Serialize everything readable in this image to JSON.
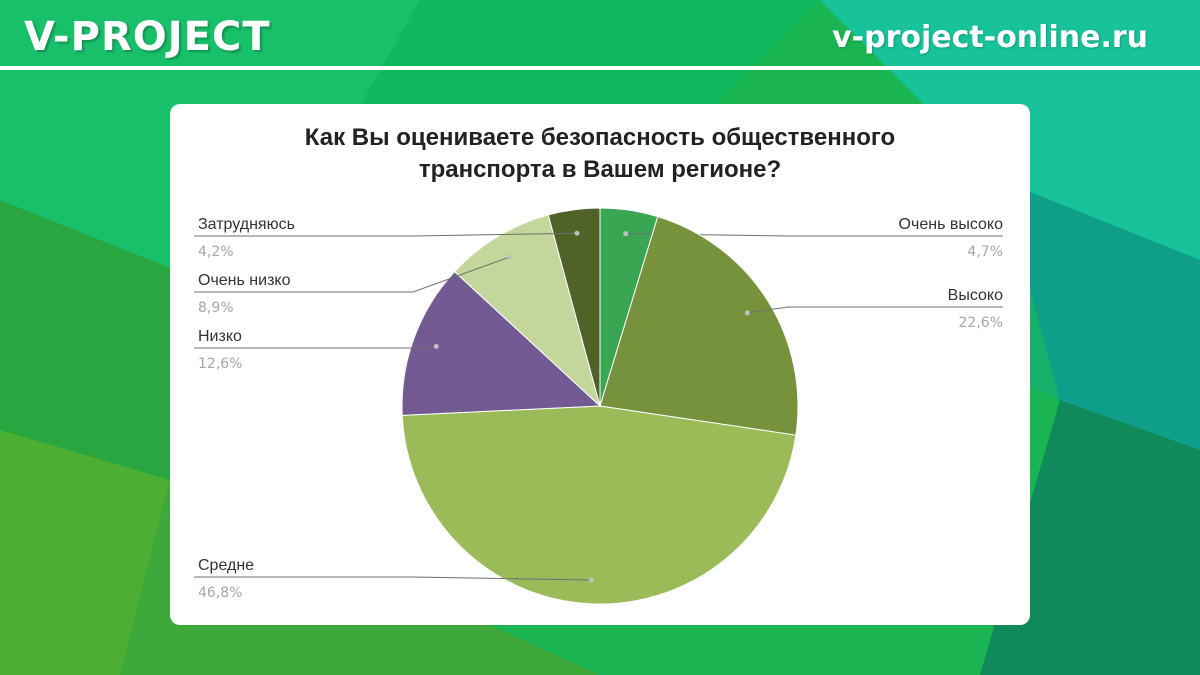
{
  "header": {
    "brand": "V-PROJECT",
    "site": "v-project-online.ru"
  },
  "colors": {
    "bg_green": "#19b651",
    "bg_teal": "#12b39a",
    "card": "#ffffff"
  },
  "chart_data": {
    "type": "pie",
    "title_lines": [
      "Как Вы оцениваете безопасность общественного",
      "транспорта в Вашем регионе?"
    ],
    "slices": [
      {
        "label": "Очень высоко",
        "value": 4.7,
        "display": "4,7%",
        "color": "#3aa552",
        "side": "right"
      },
      {
        "label": "Высоко",
        "value": 22.6,
        "display": "22,6%",
        "color": "#76923c",
        "side": "right"
      },
      {
        "label": "Средне",
        "value": 46.8,
        "display": "46,8%",
        "color": "#9bbb59",
        "side": "left"
      },
      {
        "label": "Низко",
        "value": 12.6,
        "display": "12,6%",
        "color": "#735a93",
        "side": "left"
      },
      {
        "label": "Очень низко",
        "value": 8.9,
        "display": "8,9%",
        "color": "#c3d69b",
        "side": "left"
      },
      {
        "label": "Затрудняюсь",
        "value": 4.2,
        "display": "4,2%",
        "color": "#4f6228",
        "side": "left"
      }
    ]
  }
}
